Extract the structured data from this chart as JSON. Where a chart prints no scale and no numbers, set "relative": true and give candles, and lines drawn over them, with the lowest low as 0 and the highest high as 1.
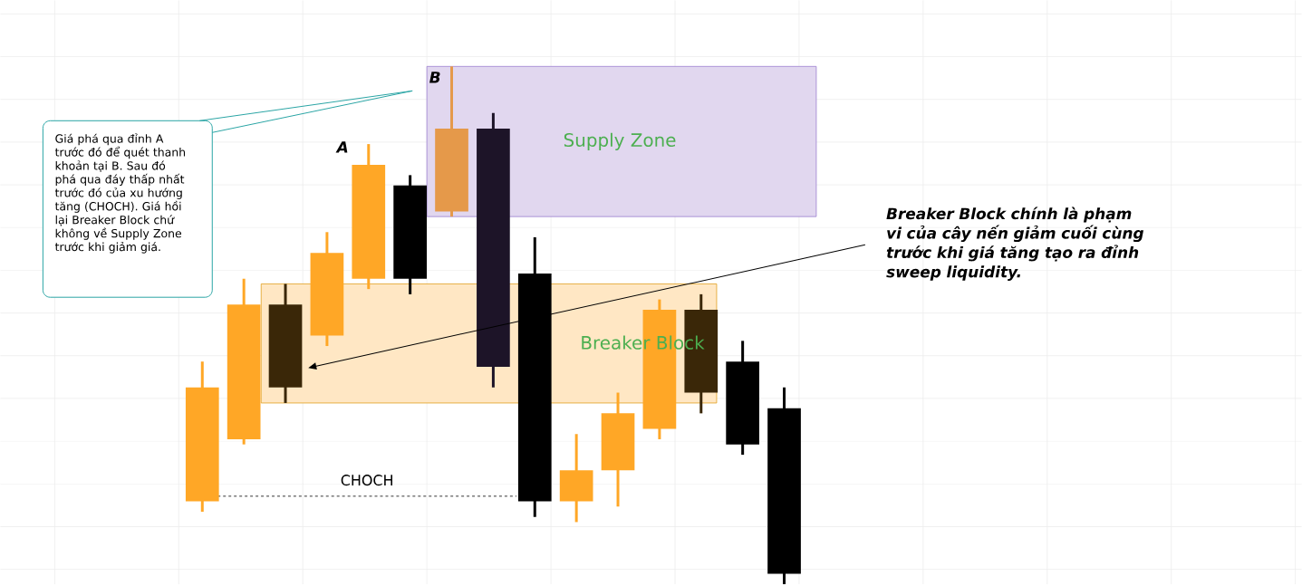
{
  "chart_data": {
    "type": "candlestick",
    "relative": true,
    "grid": true,
    "categories": [
      null,
      null,
      null,
      null,
      null,
      null,
      null,
      null,
      null,
      null,
      null,
      null,
      null,
      null,
      null
    ],
    "ohlc": [
      [
        0.16,
        0.43,
        0.14,
        0.38
      ],
      [
        0.28,
        0.59,
        0.27,
        0.54
      ],
      [
        0.54,
        0.58,
        0.35,
        0.38
      ],
      [
        0.48,
        0.68,
        0.46,
        0.64
      ],
      [
        0.59,
        0.85,
        0.57,
        0.81
      ],
      [
        0.77,
        0.79,
        0.56,
        0.59
      ],
      [
        0.72,
        1.0,
        0.71,
        0.88
      ],
      [
        0.88,
        0.91,
        0.38,
        0.42
      ],
      [
        0.6,
        0.67,
        0.13,
        0.16
      ],
      [
        0.16,
        0.29,
        0.12,
        0.22
      ],
      [
        0.22,
        0.37,
        0.15,
        0.33
      ],
      [
        0.3,
        0.55,
        0.28,
        0.53
      ],
      [
        0.53,
        0.56,
        0.33,
        0.37
      ],
      [
        0.43,
        0.47,
        0.25,
        0.27
      ],
      [
        0.34,
        0.38,
        0.0,
        0.02
      ]
    ],
    "colors": [
      "#ffa726",
      "#ffa726",
      "#3a2708",
      "#ffa726",
      "#ffa726",
      "#000000",
      "#e5994a",
      "#1d1428",
      "#000000",
      "#ffa726",
      "#ffa726",
      "#ffa726",
      "#3a2708",
      "#000000",
      "#000000"
    ],
    "bands": [
      {
        "axis": "y",
        "from": 0.71,
        "to": 1.0,
        "label": "Supply Zone",
        "color": "#e1d7ef"
      },
      {
        "axis": "y",
        "from": 0.35,
        "to": 0.58,
        "label": "Breaker Block",
        "color": "#ffe7c4"
      }
    ],
    "ref_lines": [
      {
        "axis": "y",
        "value": 0.17,
        "label": "CHOCH",
        "line_style": "dashed"
      }
    ],
    "annotations": [
      "A",
      "B",
      "Giá phá qua đỉnh A trước đó để quét thanh khoản tại B. Sau đó phá qua đáy thấp nhất trước đó của xu hướng tăng (CHOCH). Giá hồi lại Breaker Block chứ không về Supply Zone trước khi giảm giá.",
      "Breaker Block chính là phạm vi của cây nến giảm cuối cùng trước khi giá tăng tạo ra đỉnh sweep liquidity."
    ]
  }
}
